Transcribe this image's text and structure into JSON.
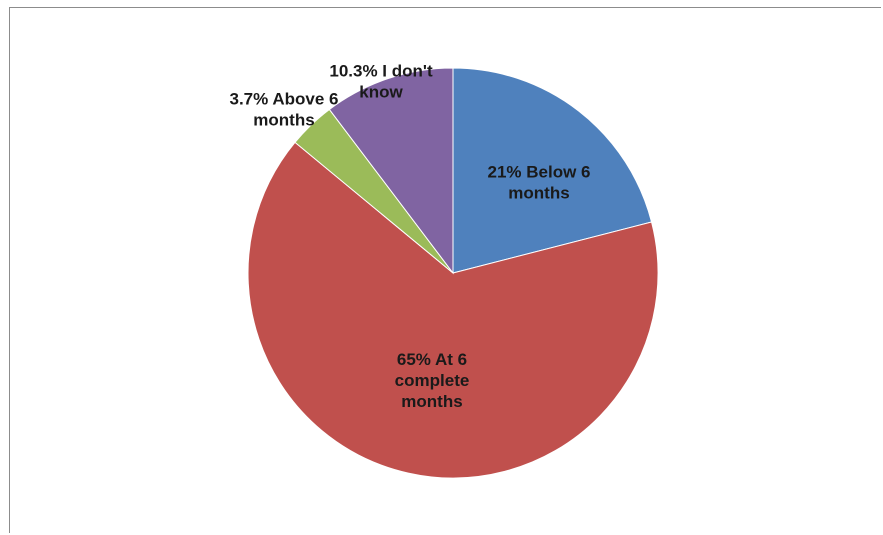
{
  "chart_data": {
    "type": "pie",
    "title": "",
    "start_angle_deg": 0,
    "direction": "clockwise",
    "legend": "none",
    "slices": [
      {
        "label": "21% Below 6 months",
        "value": 21,
        "color": "#4f81bd"
      },
      {
        "label": "65% At 6 complete months",
        "value": 65,
        "color": "#c0504d"
      },
      {
        "label": "3.7% Above 6 months",
        "value": 3.7,
        "color": "#9bbb59"
      },
      {
        "label": "10.3% I don't know",
        "value": 10.3,
        "color": "#8064a2"
      }
    ],
    "label_lines": [
      [
        "21% Below 6",
        "months"
      ],
      [
        "65%  At 6",
        "complete",
        "months"
      ],
      [
        "3.7% Above 6",
        "months"
      ],
      [
        "10.3%  I don't",
        "know"
      ]
    ]
  }
}
